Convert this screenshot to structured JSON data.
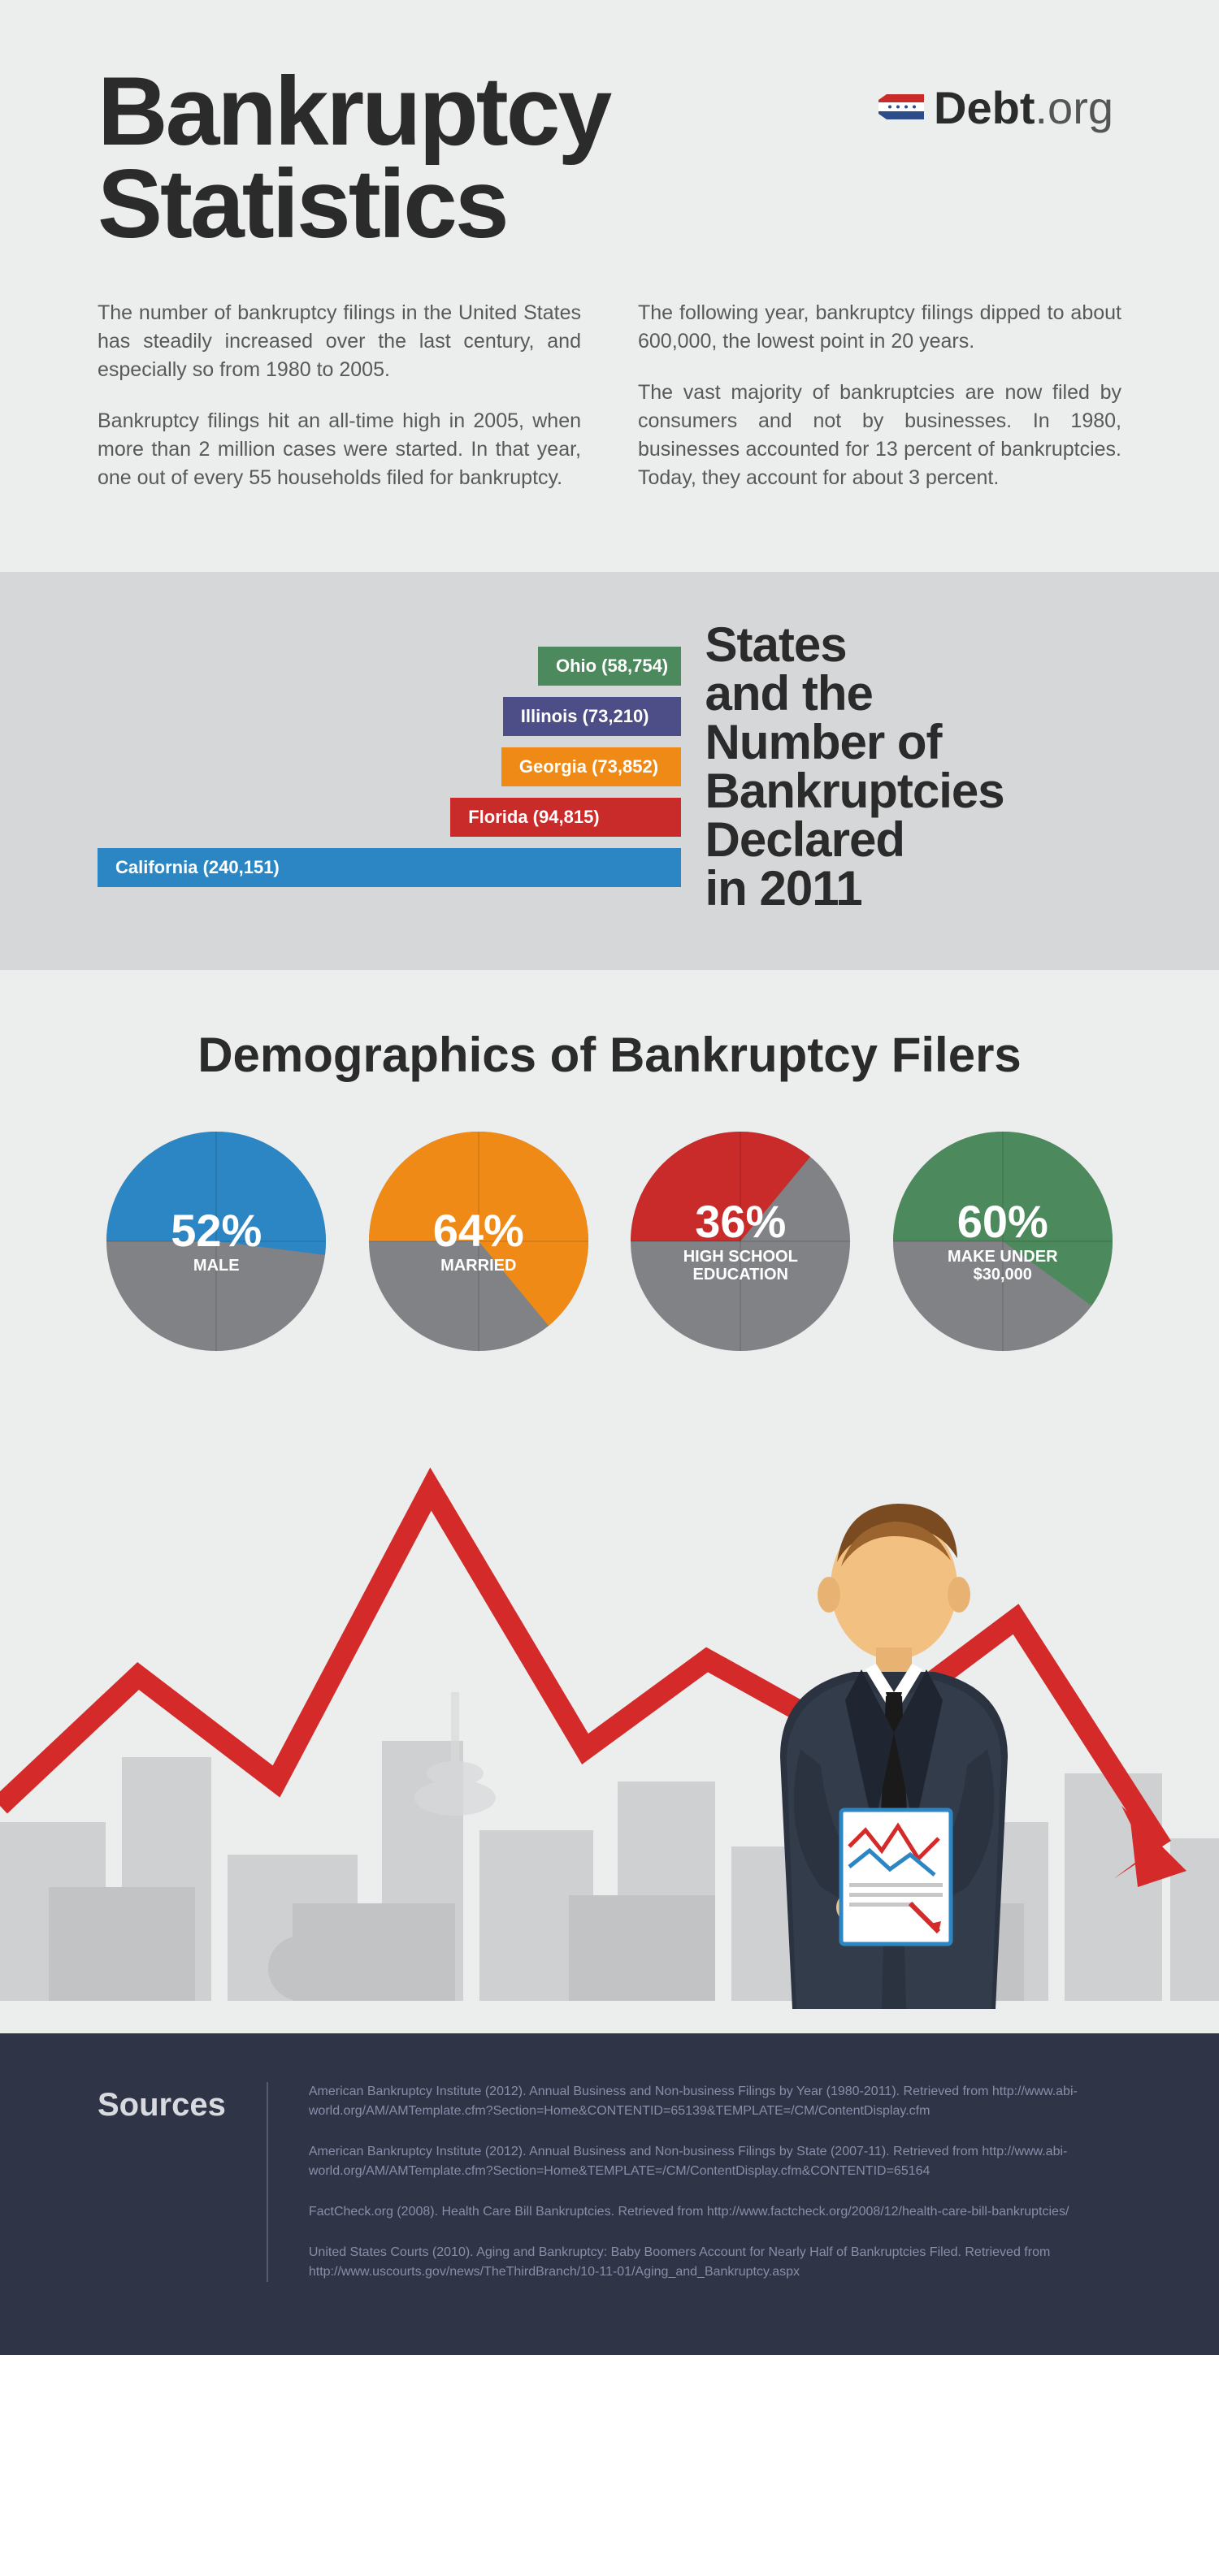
{
  "title_line1": "Bankruptcy",
  "title_line2": "Statistics",
  "logo": {
    "brand": "Debt",
    "tld": ".org"
  },
  "intro": {
    "left": [
      "The number of bankruptcy filings in the United States has steadily increased over the last century, and especially so from 1980 to 2005.",
      "Bankruptcy filings hit an all-time high in 2005, when more than 2 million cases were started. In that year, one out of every 55 households filed for bankruptcy."
    ],
    "right": [
      "The following year, bankruptcy filings dipped to about 600,000, the lowest point in 20 years.",
      "The vast majority of bankruptcies are now filed by consumers and not by businesses. In 1980, businesses accounted for 13 percent of bankruptcies. Today, they account for about 3 percent."
    ]
  },
  "bars": {
    "title": "States and the Number of Bankruptcies Declared in 2011",
    "max_value": 240151,
    "max_width_pct": 100,
    "items": [
      {
        "label": "Ohio (58,754)",
        "value": 58754,
        "color": "#4c8a5d"
      },
      {
        "label": "Illinois (73,210)",
        "value": 73210,
        "color": "#4d4d87"
      },
      {
        "label": "Georgia (73,852)",
        "value": 73852,
        "color": "#f08a16"
      },
      {
        "label": "Florida (94,815)",
        "value": 94815,
        "color": "#c92a2a"
      },
      {
        "label": "California (240,151)",
        "value": 240151,
        "color": "#2d86c4"
      }
    ]
  },
  "demographics": {
    "title": "Demographics of Bankruptcy Filers",
    "grey": "#808285",
    "pies": [
      {
        "pct": 52,
        "label": "MALE",
        "color": "#2d86c4",
        "pct_text": "52%"
      },
      {
        "pct": 64,
        "label": "MARRIED",
        "color": "#f08a16",
        "pct_text": "64%"
      },
      {
        "pct": 36,
        "label": "HIGH SCHOOL EDUCATION",
        "color": "#c92a2a",
        "pct_text": "36%"
      },
      {
        "pct": 60,
        "label": "MAKE UNDER $30,000",
        "color": "#4c8a5d",
        "pct_text": "60%"
      }
    ]
  },
  "sources": {
    "label": "Sources",
    "items": [
      "American Bankruptcy Institute (2012). Annual Business and Non-business Filings by Year (1980-2011). Retrieved from http://www.abi-world.org/AM/AMTemplate.cfm?Section=Home&CONTENTID=65139&TEMPLATE=/CM/ContentDisplay.cfm",
      "American Bankruptcy Institute (2012). Annual Business and Non-business Filings by State (2007-11). Retrieved from http://www.abi-world.org/AM/AMTemplate.cfm?Section=Home&TEMPLATE=/CM/ContentDisplay.cfm&CONTENTID=65164",
      "FactCheck.org (2008). Health Care Bill Bankruptcies. Retrieved from http://www.factcheck.org/2008/12/health-care-bill-bankruptcies/",
      "United States Courts (2010). Aging and Bankruptcy: Baby Boomers Account for Nearly Half of Bankruptcies Filed. Retrieved from http://www.uscourts.gov/news/TheThirdBranch/10-11-01/Aging_and_Bankruptcy.aspx"
    ]
  },
  "colors": {
    "header_bg": "#eceded",
    "bars_bg": "#d6d7d8",
    "footer_bg": "#2f3447",
    "redline": "#d42a2a"
  }
}
